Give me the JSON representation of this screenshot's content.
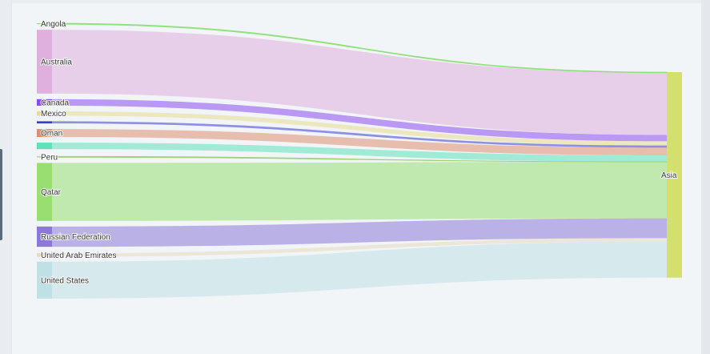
{
  "chart_data": {
    "type": "sankey",
    "title": "",
    "unit": "",
    "sources": [
      {
        "name": "Angola",
        "color": "#8fe07c",
        "value": 1.0
      },
      {
        "name": "Australia",
        "color": "#dfafde",
        "value": 88.0
      },
      {
        "name": "Canada",
        "color": "#8a4cf0",
        "value": 9.0
      },
      {
        "name": "Mexico",
        "color": "#e8db8e",
        "value": 6.0
      },
      {
        "name": "",
        "color": "#3b3ad0",
        "value": 3.0
      },
      {
        "name": "Oman",
        "color": "#df8f6f",
        "value": 11.0
      },
      {
        "name": "",
        "color": "#5fe0b8",
        "value": 9.0
      },
      {
        "name": "Peru",
        "color": "#9fd07c",
        "value": 0.2
      },
      {
        "name": "Qatar",
        "color": "#98de70",
        "value": 80.0
      },
      {
        "name": "Russian Federation",
        "color": "#8c78d8",
        "value": 28.0
      },
      {
        "name": "United Arab Emirates",
        "color": "#e8d8c0",
        "value": 5.0
      },
      {
        "name": "United States",
        "color": "#bfe0e4",
        "value": 51.0
      }
    ],
    "targets": [
      {
        "name": "Asia",
        "color": "#d4e06e"
      }
    ],
    "links": [
      {
        "source": "Angola",
        "target": "Asia",
        "value": 1.0
      },
      {
        "source": "Australia",
        "target": "Asia",
        "value": 88.0
      },
      {
        "source": "Canada",
        "target": "Asia",
        "value": 9.0
      },
      {
        "source": "Mexico",
        "target": "Asia",
        "value": 6.0
      },
      {
        "source": "",
        "target": "Asia",
        "value": 3.0
      },
      {
        "source": "Oman",
        "target": "Asia",
        "value": 11.0
      },
      {
        "source": "",
        "target": "Asia",
        "value": 9.0
      },
      {
        "source": "Peru",
        "target": "Asia",
        "value": 0.2
      },
      {
        "source": "Qatar",
        "target": "Asia",
        "value": 80.0
      },
      {
        "source": "Russian Federation",
        "target": "Asia",
        "value": 28.0
      },
      {
        "source": "United Arab Emirates",
        "target": "Asia",
        "value": 5.0
      },
      {
        "source": "United States",
        "target": "Asia",
        "value": 51.0
      }
    ]
  }
}
